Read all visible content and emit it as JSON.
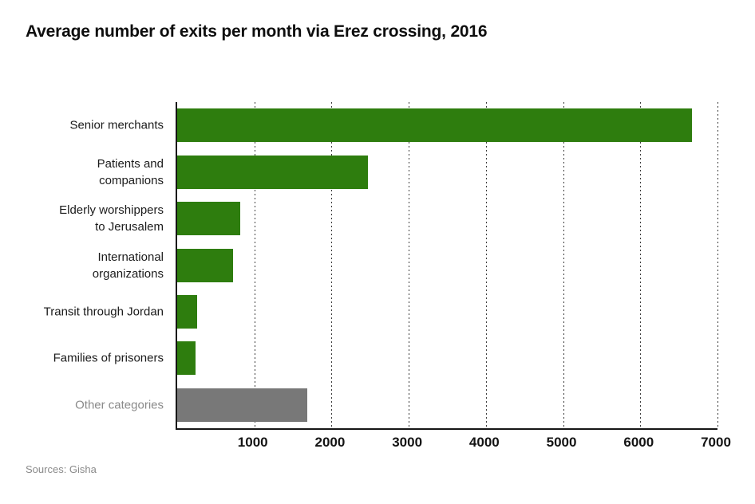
{
  "source": "Sources: Gisha",
  "colors": {
    "bar_green": "#2e7d0e",
    "bar_gray": "#787878",
    "label_dark": "#1b1b1b",
    "label_muted": "#8a8a8a",
    "axis": "#161616",
    "grid": "#3d3d3d"
  },
  "chart_data": {
    "type": "bar",
    "orientation": "horizontal",
    "title": "Average number of exits per month via Erez crossing, 2016",
    "categories": [
      "Senior merchants",
      "Patients and\ncompanions",
      "Elderly worshippers\nto Jerusalem",
      "International\norganizations",
      "Transit through Jordan",
      "Families of prisoners",
      "Other categories"
    ],
    "values": [
      6670,
      2470,
      820,
      720,
      260,
      240,
      1690
    ],
    "bar_colors": [
      "green",
      "green",
      "green",
      "green",
      "green",
      "green",
      "gray"
    ],
    "label_styles": [
      "dark",
      "dark",
      "dark",
      "dark",
      "dark",
      "dark",
      "muted"
    ],
    "xlim": [
      0,
      7000
    ],
    "x_ticks": [
      1000,
      2000,
      3000,
      4000,
      5000,
      6000,
      7000
    ],
    "xlabel": "",
    "ylabel": "",
    "grid": "vertical-dashed",
    "legend": "none"
  }
}
